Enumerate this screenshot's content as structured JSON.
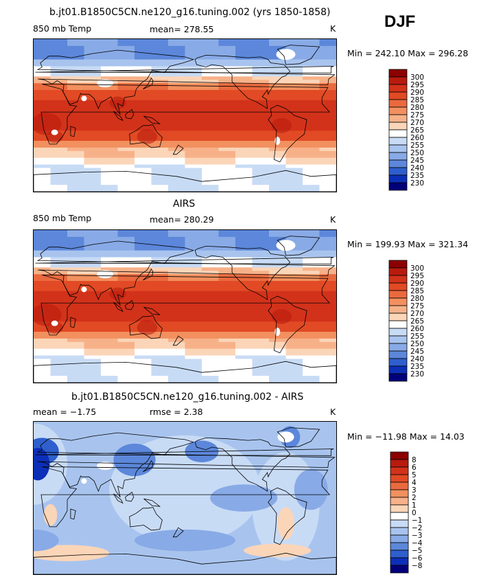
{
  "season": "DJF",
  "panels": [
    {
      "title": "b.jt01.B1850C5CN.ne120_g16.tuning.002 (yrs 1850-1858)",
      "left_label": "850 mb Temp",
      "center_label": "mean= 278.55",
      "units": "K",
      "minmax": "Min = 242.10 Max = 296.28",
      "colorbar_labels": [
        "300",
        "295",
        "290",
        "285",
        "280",
        "275",
        "270",
        "265",
        "260",
        "255",
        "250",
        "245",
        "240",
        "235",
        "230"
      ],
      "colorbar_colors": [
        "#8b0000",
        "#b81b0e",
        "#d2321a",
        "#e14a24",
        "#ea6a3f",
        "#f2905f",
        "#f7b189",
        "#fbd5b8",
        "#ffffff",
        "#c8dbf5",
        "#a8c4ee",
        "#88aae6",
        "#5c87da",
        "#2f5fcd",
        "#0c2fb7",
        "#00007a"
      ],
      "map": {
        "type": "abs",
        "scale": 1.0
      }
    },
    {
      "title": "AIRS",
      "left_label": "850 mb Temp",
      "center_label": "mean= 280.29",
      "units": "K",
      "minmax": "Min = 199.93 Max = 321.34",
      "colorbar_labels": [
        "300",
        "295",
        "290",
        "285",
        "280",
        "275",
        "270",
        "265",
        "260",
        "255",
        "250",
        "245",
        "240",
        "235",
        "230"
      ],
      "colorbar_colors": [
        "#8b0000",
        "#b81b0e",
        "#d2321a",
        "#e14a24",
        "#ea6a3f",
        "#f2905f",
        "#f7b189",
        "#fbd5b8",
        "#ffffff",
        "#c8dbf5",
        "#a8c4ee",
        "#88aae6",
        "#5c87da",
        "#2f5fcd",
        "#0c2fb7",
        "#00007a"
      ],
      "map": {
        "type": "abs",
        "scale": 1.08
      }
    },
    {
      "title": "b.jt01.B1850C5CN.ne120_g16.tuning.002 - AIRS",
      "left_label": "mean =  −1.75",
      "center_label": "rmse =   2.38",
      "units": "K",
      "minmax": "Min = −11.98 Max =  14.03",
      "colorbar_labels": [
        "8",
        "6",
        "5",
        "4",
        "3",
        "2",
        "1",
        "0",
        "−1",
        "−2",
        "−3",
        "−4",
        "−5",
        "−6",
        "−8"
      ],
      "colorbar_colors": [
        "#8b0000",
        "#b81b0e",
        "#d2321a",
        "#e14a24",
        "#ea6a3f",
        "#f2905f",
        "#f7b189",
        "#fbd5b8",
        "#ffffff",
        "#c8dbf5",
        "#a8c4ee",
        "#88aae6",
        "#5c87da",
        "#2f5fcd",
        "#0c2fb7",
        "#00007a"
      ],
      "map": {
        "type": "diff"
      }
    }
  ],
  "chart_data": [
    {
      "type": "heatmap",
      "title": "b.jt01.B1850C5CN.ne120_g16.tuning.002 (yrs 1850-1858)",
      "variable": "850 mb Temp",
      "units": "K",
      "season": "DJF",
      "mean": 278.55,
      "min": 242.1,
      "max": 296.28,
      "levels": [
        230,
        235,
        240,
        245,
        250,
        255,
        260,
        265,
        270,
        275,
        280,
        285,
        290,
        295,
        300
      ]
    },
    {
      "type": "heatmap",
      "title": "AIRS",
      "variable": "850 mb Temp",
      "units": "K",
      "season": "DJF",
      "mean": 280.29,
      "min": 199.93,
      "max": 321.34,
      "levels": [
        230,
        235,
        240,
        245,
        250,
        255,
        260,
        265,
        270,
        275,
        280,
        285,
        290,
        295,
        300
      ]
    },
    {
      "type": "heatmap",
      "title": "b.jt01.B1850C5CN.ne120_g16.tuning.002 - AIRS",
      "units": "K",
      "season": "DJF",
      "mean": -1.75,
      "rmse": 2.38,
      "min": -11.98,
      "max": 14.03,
      "levels": [
        -8,
        -6,
        -5,
        -4,
        -3,
        -2,
        -1,
        0,
        1,
        2,
        3,
        4,
        5,
        6,
        8
      ]
    }
  ]
}
